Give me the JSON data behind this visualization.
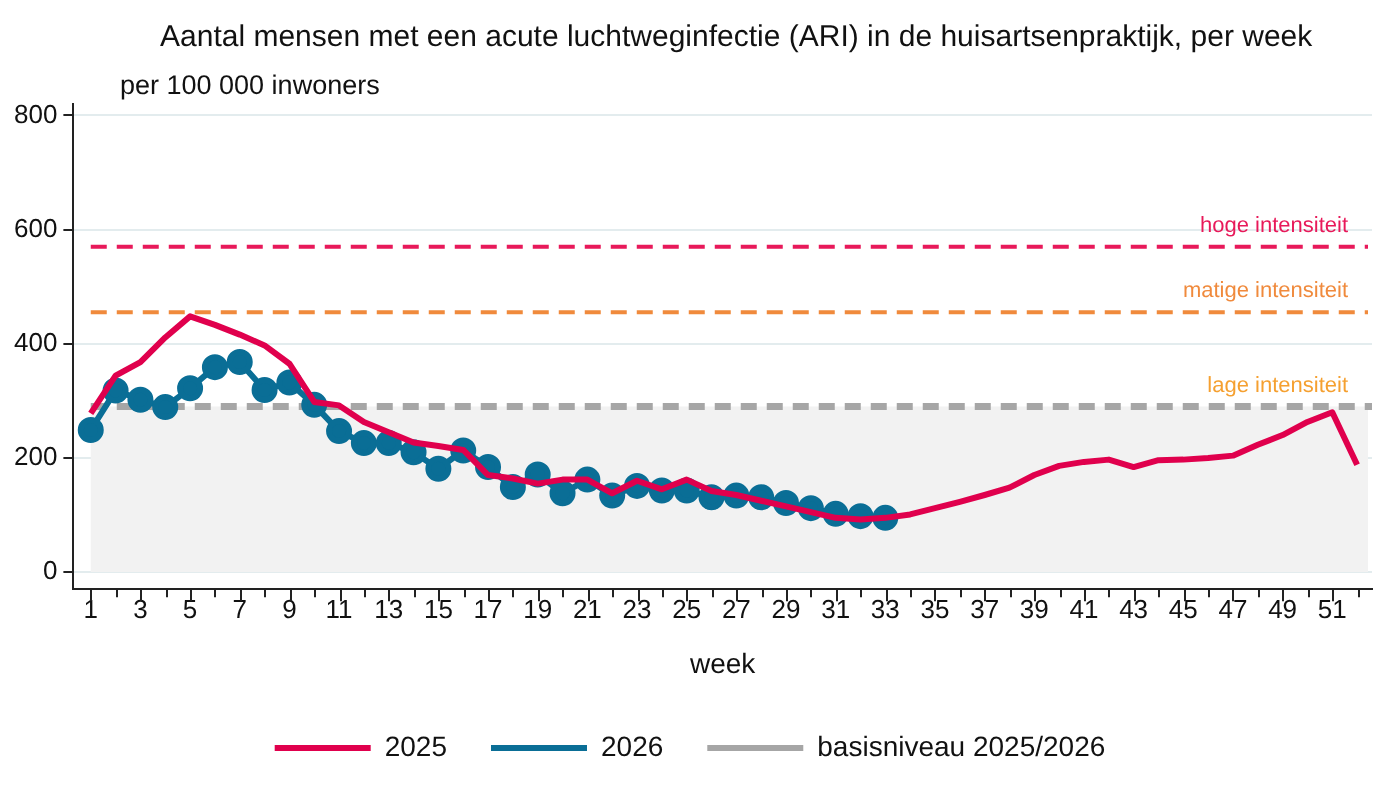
{
  "chart_data": {
    "type": "line",
    "title": "Aantal mensen met een acute luchtweginfectie (ARI) in de huisartsenpraktijk, per week",
    "subtitle": "per 100 000 inwoners",
    "xlabel": "week",
    "xlim": [
      0.3,
      52.6
    ],
    "xticks": [
      1,
      {
        "value": 2,
        "label": null
      },
      3,
      {
        "value": 4,
        "label": null
      },
      5,
      {
        "value": 6,
        "label": null
      },
      7,
      {
        "value": 8,
        "label": null
      },
      9,
      {
        "value": 10,
        "label": null
      },
      11,
      {
        "value": 12,
        "label": null
      },
      13,
      {
        "value": 14,
        "label": null
      },
      15,
      {
        "value": 16,
        "label": null
      },
      17,
      {
        "value": 18,
        "label": null
      },
      19,
      {
        "value": 20,
        "label": null
      },
      21,
      {
        "value": 22,
        "label": null
      },
      23,
      {
        "value": 24,
        "label": null
      },
      25,
      {
        "value": 26,
        "label": null
      },
      27,
      {
        "value": 28,
        "label": null
      },
      29,
      {
        "value": 30,
        "label": null
      },
      31,
      {
        "value": 32,
        "label": null
      },
      33,
      {
        "value": 34,
        "label": null
      },
      35,
      {
        "value": 36,
        "label": null
      },
      37,
      {
        "value": 38,
        "label": null
      },
      39,
      {
        "value": 40,
        "label": null
      },
      41,
      {
        "value": 42,
        "label": null
      },
      43,
      {
        "value": 44,
        "label": null
      },
      45,
      {
        "value": 46,
        "label": null
      },
      47,
      {
        "value": 48,
        "label": null
      },
      49,
      {
        "value": 50,
        "label": null
      },
      51,
      {
        "value": 52,
        "label": null
      }
    ],
    "ylim": [
      -30,
      820
    ],
    "yticks": [
      0,
      200,
      400,
      600,
      800
    ],
    "grid": "y",
    "legend": "bottom",
    "series": [
      {
        "name": "2025",
        "color": "#e0004d",
        "marker": "none",
        "x": [
          1,
          2,
          3,
          4,
          5,
          6,
          7,
          8,
          9,
          10,
          11,
          12,
          13,
          14,
          15,
          16,
          17,
          18,
          19,
          20,
          21,
          22,
          23,
          24,
          25,
          26,
          27,
          28,
          29,
          30,
          31,
          32,
          33,
          34,
          35,
          36,
          37,
          38,
          39,
          40,
          41,
          42,
          43,
          44,
          45,
          46,
          47,
          48,
          49,
          50,
          51,
          52
        ],
        "values": [
          278,
          344,
          368,
          411,
          448,
          433,
          416,
          397,
          365,
          298,
          292,
          263,
          245,
          227,
          221,
          214,
          170,
          164,
          155,
          162,
          162,
          138,
          160,
          145,
          162,
          142,
          135,
          125,
          115,
          105,
          95,
          92,
          95,
          101,
          112,
          123,
          135,
          148,
          170,
          186,
          193,
          197,
          184,
          196,
          197,
          200,
          204,
          223,
          240,
          263,
          280,
          188
        ]
      },
      {
        "name": "2026",
        "color": "#0a6e96",
        "marker": "circle",
        "x": [
          1,
          2,
          3,
          4,
          5,
          6,
          7,
          8,
          9,
          10,
          11,
          12,
          13,
          14,
          15,
          16,
          17,
          18,
          19,
          20,
          21,
          22,
          23,
          24,
          25,
          26,
          27,
          28,
          29,
          30,
          31,
          32,
          33
        ],
        "values": [
          249,
          318,
          302,
          289,
          322,
          359,
          368,
          319,
          332,
          293,
          247,
          226,
          226,
          210,
          181,
          213,
          184,
          149,
          171,
          138,
          162,
          134,
          151,
          143,
          143,
          131,
          134,
          131,
          121,
          112,
          102,
          98,
          95
        ]
      },
      {
        "name": "basisniveau 2025/2026",
        "color": "#a6a6a6",
        "marker": "none",
        "line_style": "dashed",
        "x": [
          1,
          52.6
        ],
        "values": [
          290,
          290
        ]
      }
    ],
    "ref_lines": [
      {
        "axis": "y",
        "value": 570,
        "label": "hoge intensiteit",
        "color": "#e8195a",
        "line_style": "dashed"
      },
      {
        "axis": "y",
        "value": 455,
        "label": "matige intensiteit",
        "color": "#f08a3c",
        "line_style": "dashed"
      }
    ],
    "bands": [
      {
        "axis": "y",
        "from": 0,
        "to": 290,
        "color": "#f2f2f2"
      }
    ],
    "annotations": [
      {
        "text": "lage intensiteit",
        "x": 52.6,
        "y": 290
      }
    ]
  }
}
